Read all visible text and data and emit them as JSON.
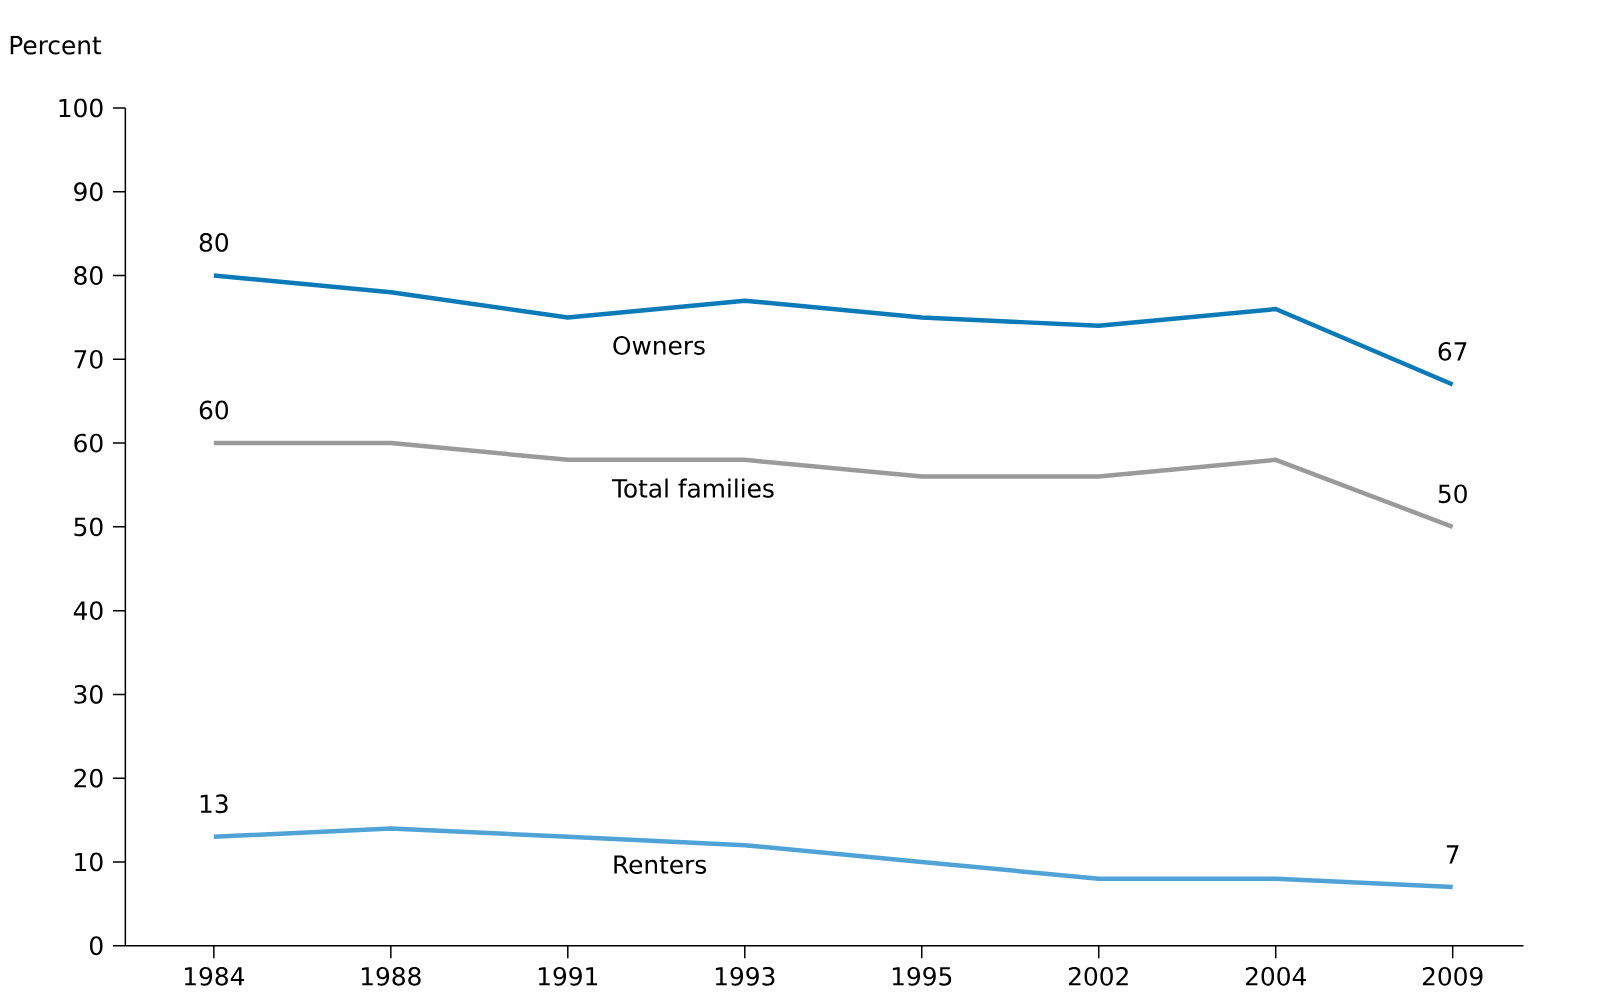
{
  "chart_data": {
    "type": "line",
    "ylabel": "Percent",
    "categories": [
      "1984",
      "1988",
      "1991",
      "1993",
      "1995",
      "2002",
      "2004",
      "2009"
    ],
    "series": [
      {
        "name": "Owners",
        "color": "#0a7ab8",
        "values": [
          80,
          78,
          75,
          77,
          75,
          74,
          76,
          67
        ],
        "value_labels": [
          "80",
          null,
          null,
          null,
          null,
          null,
          null,
          "67"
        ]
      },
      {
        "name": "Total families",
        "color": "#9a9a9a",
        "values": [
          60,
          60,
          58,
          58,
          56,
          56,
          58,
          50
        ],
        "value_labels": [
          "60",
          null,
          null,
          null,
          null,
          null,
          null,
          "50"
        ]
      },
      {
        "name": "Renters",
        "color": "#4fa3d6",
        "values": [
          13,
          14,
          13,
          12,
          10,
          8,
          8,
          7
        ],
        "value_labels": [
          "13",
          null,
          null,
          null,
          null,
          null,
          null,
          "7"
        ]
      }
    ],
    "ylim": [
      0,
      100
    ],
    "yticks": [
      0,
      10,
      20,
      30,
      40,
      50,
      60,
      70,
      80,
      90,
      100
    ],
    "grid": false,
    "legend": false,
    "marker": "none",
    "line_style": "solid"
  }
}
